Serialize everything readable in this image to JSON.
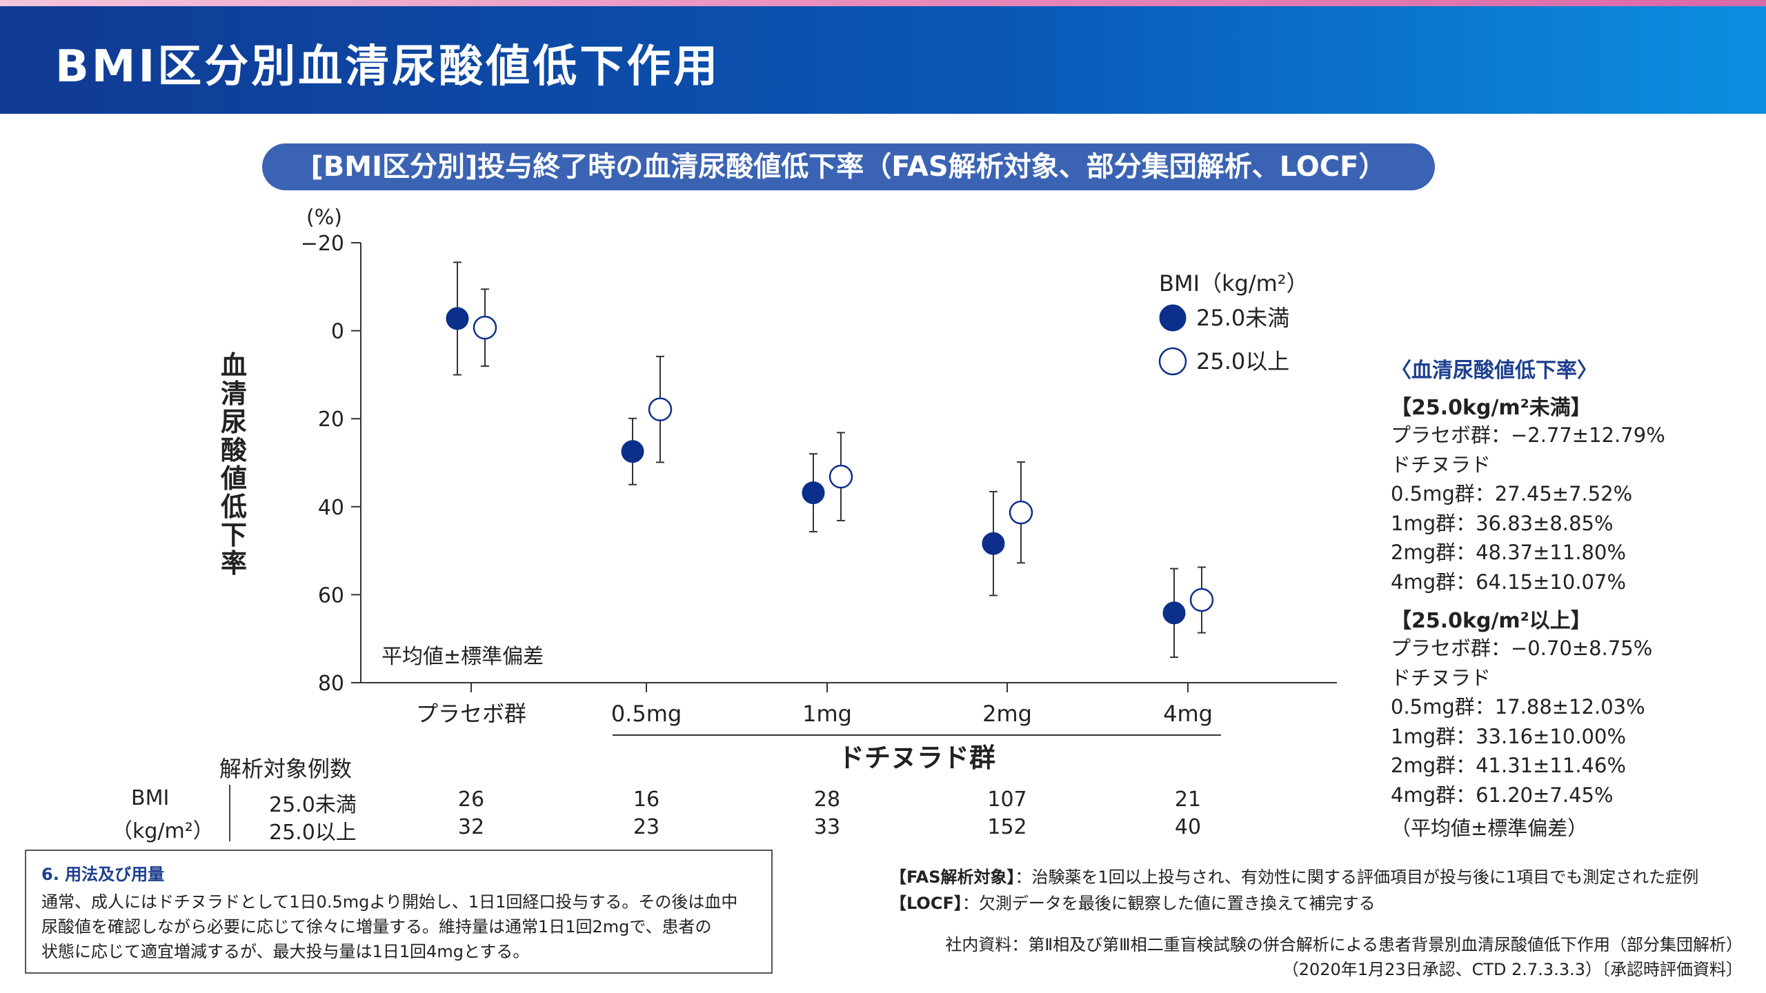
{
  "header": {
    "title": "BMI区分別血清尿酸値低下作用"
  },
  "chart_title": "[BMI区分別]投与終了時の血清尿酸値低下率（FAS解析対象、部分集団解析、LOCF）",
  "chart_data": {
    "type": "scatter",
    "y_unit": "(%)",
    "ylabel": "血清尿酸値低下率",
    "ylim": [
      -20,
      80
    ],
    "y_inverted": true,
    "yticks": [
      "−20",
      "0",
      "20",
      "40",
      "60",
      "80"
    ],
    "ytick_values": [
      -20,
      0,
      20,
      40,
      60,
      80
    ],
    "categories": [
      "プラセボ群",
      "0.5mg",
      "1mg",
      "2mg",
      "4mg"
    ],
    "group_label": "ドチヌラド群",
    "stat_note": "平均値±標準偏差",
    "legend_title": "BMI（kg/m²）",
    "legend_position": "top-right",
    "series": [
      {
        "name": "25.0未満",
        "marker": "filled",
        "mean": [
          -2.77,
          27.45,
          36.83,
          48.37,
          64.15
        ],
        "sd": [
          12.79,
          7.52,
          8.85,
          11.8,
          10.07
        ]
      },
      {
        "name": "25.0以上",
        "marker": "open",
        "mean": [
          -0.7,
          17.88,
          33.16,
          41.31,
          61.2
        ],
        "sd": [
          8.75,
          12.03,
          10.0,
          11.46,
          7.45
        ]
      }
    ],
    "colors": {
      "axis": "#333333",
      "filled": "#0b2f8a",
      "open_stroke": "#0b2f8a"
    }
  },
  "n_table": {
    "title": "解析対象例数",
    "row_header_line1": "BMI",
    "row_header_line2": "（kg/m²）",
    "rows": [
      {
        "label": "25.0未満",
        "values": [
          "26",
          "16",
          "28",
          "107",
          "21"
        ]
      },
      {
        "label": "25.0以上",
        "values": [
          "32",
          "23",
          "33",
          "152",
          "40"
        ]
      }
    ]
  },
  "summary": {
    "title": "〈血清尿酸値低下率〉",
    "groups": [
      {
        "heading": "【25.0kg/m²未満】",
        "lines": [
          "プラセボ群：−2.77±12.79%",
          "ドチヌラド",
          "0.5mg群：27.45±7.52%",
          "1mg群：36.83±8.85%",
          "2mg群：48.37±11.80%",
          "4mg群：64.15±10.07%"
        ]
      },
      {
        "heading": "【25.0kg/m²以上】",
        "lines": [
          "プラセボ群：−0.70±8.75%",
          "ドチヌラド",
          "0.5mg群：17.88±12.03%",
          "1mg群：33.16±10.00%",
          "2mg群：41.31±11.46%",
          "4mg群：61.20±7.45%"
        ]
      }
    ],
    "note": "（平均値±標準偏差）"
  },
  "dosage_box": {
    "title": "6. 用法及び用量",
    "lines": [
      "通常、成人にはドチヌラドとして1日0.5mgより開始し、1日1回経口投与する。その後は血中",
      "尿酸値を確認しながら必要に応じて徐々に増量する。維持量は通常1日1回2mgで、患者の",
      "状態に応じて適宜増減するが、最大投与量は1日1回4mgとする。"
    ]
  },
  "footnotes": {
    "fas_term": "【FAS解析対象】",
    "fas_text": "：治験薬を1回以上投与され、有効性に関する評価項目が投与後に1項目でも測定された症例",
    "locf_term": "【LOCF】",
    "locf_text": "：欠測データを最後に観察した値に置き換えて補完する",
    "source1": "社内資料：第Ⅱ相及び第Ⅲ相二重盲検試験の併合解析による患者背景別血清尿酸値低下作用（部分集団解析）",
    "source2": "（2020年1月23日承認、CTD 2.7.3.3.3）〔承認時評価資料〕"
  }
}
